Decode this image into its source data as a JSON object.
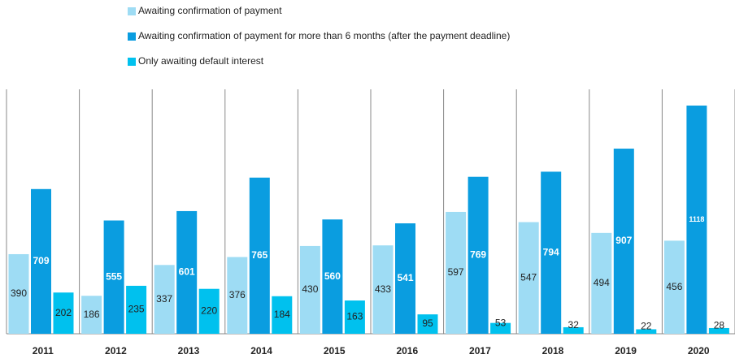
{
  "chart_data": {
    "type": "bar",
    "categories": [
      "2011",
      "2012",
      "2013",
      "2014",
      "2015",
      "2016",
      "2017",
      "2018",
      "2019",
      "2020"
    ],
    "series": [
      {
        "name": "Awaiting confirmation of payment",
        "color": "#9edcf4",
        "values": [
          390,
          186,
          337,
          376,
          430,
          433,
          597,
          547,
          494,
          456
        ]
      },
      {
        "name": "Awaiting confirmation of payment for more than 6 months (after the payment deadline)",
        "color": "#0a9de0",
        "values": [
          709,
          555,
          601,
          765,
          560,
          541,
          769,
          794,
          907,
          1118
        ]
      },
      {
        "name": "Only awaiting default interest",
        "color": "#00c1ee",
        "values": [
          202,
          235,
          220,
          184,
          163,
          95,
          53,
          32,
          22,
          28
        ]
      }
    ]
  }
}
